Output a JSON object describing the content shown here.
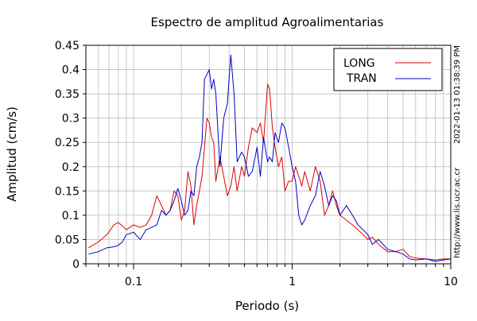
{
  "chart_data": {
    "type": "line",
    "title": "Espectro de amplitud Agroalimentarias",
    "xlabel": "Periodo (s)",
    "ylabel": "Amplitud (cm/s)",
    "x_scale": "log",
    "xlim": [
      0.05,
      10
    ],
    "ylim": [
      0,
      0.45
    ],
    "grid": true,
    "legend_position": "top-right",
    "x_ticks": [
      {
        "value": 0.1,
        "label": "0.1"
      },
      {
        "value": 1,
        "label": "1"
      },
      {
        "value": 10,
        "label": "10"
      }
    ],
    "y_ticks": [
      {
        "value": 0,
        "label": "0"
      },
      {
        "value": 0.05,
        "label": "0.05"
      },
      {
        "value": 0.1,
        "label": "0.1"
      },
      {
        "value": 0.15,
        "label": "0.15"
      },
      {
        "value": 0.2,
        "label": "0.2"
      },
      {
        "value": 0.25,
        "label": "0.25"
      },
      {
        "value": 0.3,
        "label": "0.3"
      },
      {
        "value": 0.35,
        "label": "0.35"
      },
      {
        "value": 0.4,
        "label": "0.4"
      },
      {
        "value": 0.45,
        "label": "0.45"
      }
    ],
    "series": [
      {
        "name": "LONG",
        "color": "#dd0000",
        "x": [
          0.052,
          0.06,
          0.068,
          0.075,
          0.08,
          0.085,
          0.09,
          0.1,
          0.11,
          0.12,
          0.13,
          0.14,
          0.15,
          0.16,
          0.17,
          0.18,
          0.19,
          0.2,
          0.21,
          0.22,
          0.23,
          0.24,
          0.25,
          0.26,
          0.27,
          0.28,
          0.29,
          0.3,
          0.31,
          0.32,
          0.33,
          0.35,
          0.37,
          0.39,
          0.41,
          0.43,
          0.45,
          0.48,
          0.5,
          0.53,
          0.56,
          0.6,
          0.63,
          0.66,
          0.7,
          0.72,
          0.75,
          0.78,
          0.82,
          0.86,
          0.9,
          0.95,
          1.0,
          1.05,
          1.1,
          1.15,
          1.2,
          1.3,
          1.4,
          1.5,
          1.6,
          1.7,
          1.8,
          1.9,
          2.0,
          2.2,
          2.4,
          2.6,
          2.8,
          3.0,
          3.2,
          3.5,
          4.0,
          4.5,
          5.0,
          5.5,
          6.0,
          7.0,
          8.0,
          9.0,
          10.0
        ],
        "y": [
          0.033,
          0.045,
          0.06,
          0.08,
          0.085,
          0.078,
          0.07,
          0.08,
          0.075,
          0.08,
          0.1,
          0.14,
          0.12,
          0.1,
          0.11,
          0.15,
          0.14,
          0.09,
          0.11,
          0.19,
          0.16,
          0.08,
          0.12,
          0.15,
          0.18,
          0.24,
          0.3,
          0.29,
          0.26,
          0.25,
          0.17,
          0.22,
          0.18,
          0.14,
          0.16,
          0.2,
          0.15,
          0.2,
          0.18,
          0.24,
          0.28,
          0.27,
          0.29,
          0.25,
          0.37,
          0.36,
          0.28,
          0.24,
          0.2,
          0.22,
          0.15,
          0.17,
          0.17,
          0.2,
          0.18,
          0.16,
          0.19,
          0.15,
          0.2,
          0.17,
          0.1,
          0.12,
          0.15,
          0.12,
          0.1,
          0.09,
          0.08,
          0.07,
          0.06,
          0.05,
          0.055,
          0.04,
          0.025,
          0.025,
          0.03,
          0.015,
          0.012,
          0.01,
          0.008,
          0.01,
          0.01
        ]
      },
      {
        "name": "TRAN",
        "color": "#0000cc",
        "x": [
          0.052,
          0.06,
          0.068,
          0.075,
          0.08,
          0.085,
          0.09,
          0.1,
          0.11,
          0.12,
          0.13,
          0.14,
          0.15,
          0.16,
          0.17,
          0.18,
          0.19,
          0.2,
          0.21,
          0.22,
          0.23,
          0.24,
          0.25,
          0.26,
          0.27,
          0.28,
          0.29,
          0.3,
          0.31,
          0.32,
          0.33,
          0.35,
          0.37,
          0.39,
          0.41,
          0.43,
          0.45,
          0.48,
          0.5,
          0.53,
          0.56,
          0.6,
          0.63,
          0.66,
          0.7,
          0.72,
          0.75,
          0.78,
          0.82,
          0.86,
          0.9,
          0.95,
          1.0,
          1.05,
          1.1,
          1.15,
          1.2,
          1.3,
          1.4,
          1.5,
          1.6,
          1.7,
          1.8,
          1.9,
          2.0,
          2.2,
          2.4,
          2.6,
          2.8,
          3.0,
          3.2,
          3.5,
          4.0,
          4.5,
          5.0,
          5.5,
          6.0,
          7.0,
          8.0,
          9.0,
          10.0
        ],
        "y": [
          0.02,
          0.025,
          0.033,
          0.035,
          0.038,
          0.045,
          0.06,
          0.065,
          0.05,
          0.07,
          0.075,
          0.08,
          0.11,
          0.1,
          0.11,
          0.13,
          0.155,
          0.13,
          0.1,
          0.11,
          0.15,
          0.14,
          0.2,
          0.22,
          0.25,
          0.38,
          0.39,
          0.4,
          0.36,
          0.38,
          0.35,
          0.2,
          0.3,
          0.33,
          0.43,
          0.35,
          0.21,
          0.23,
          0.22,
          0.18,
          0.19,
          0.24,
          0.18,
          0.26,
          0.21,
          0.22,
          0.21,
          0.27,
          0.25,
          0.29,
          0.28,
          0.24,
          0.2,
          0.17,
          0.1,
          0.08,
          0.09,
          0.12,
          0.14,
          0.19,
          0.16,
          0.12,
          0.14,
          0.13,
          0.1,
          0.12,
          0.1,
          0.08,
          0.07,
          0.06,
          0.04,
          0.05,
          0.03,
          0.025,
          0.02,
          0.01,
          0.008,
          0.01,
          0.005,
          0.008,
          0.01
        ]
      }
    ]
  },
  "side_text": {
    "timestamp": "2022-01-13 01:38:39 PM",
    "url": "http://www.lis.ucr.ac.cr"
  }
}
